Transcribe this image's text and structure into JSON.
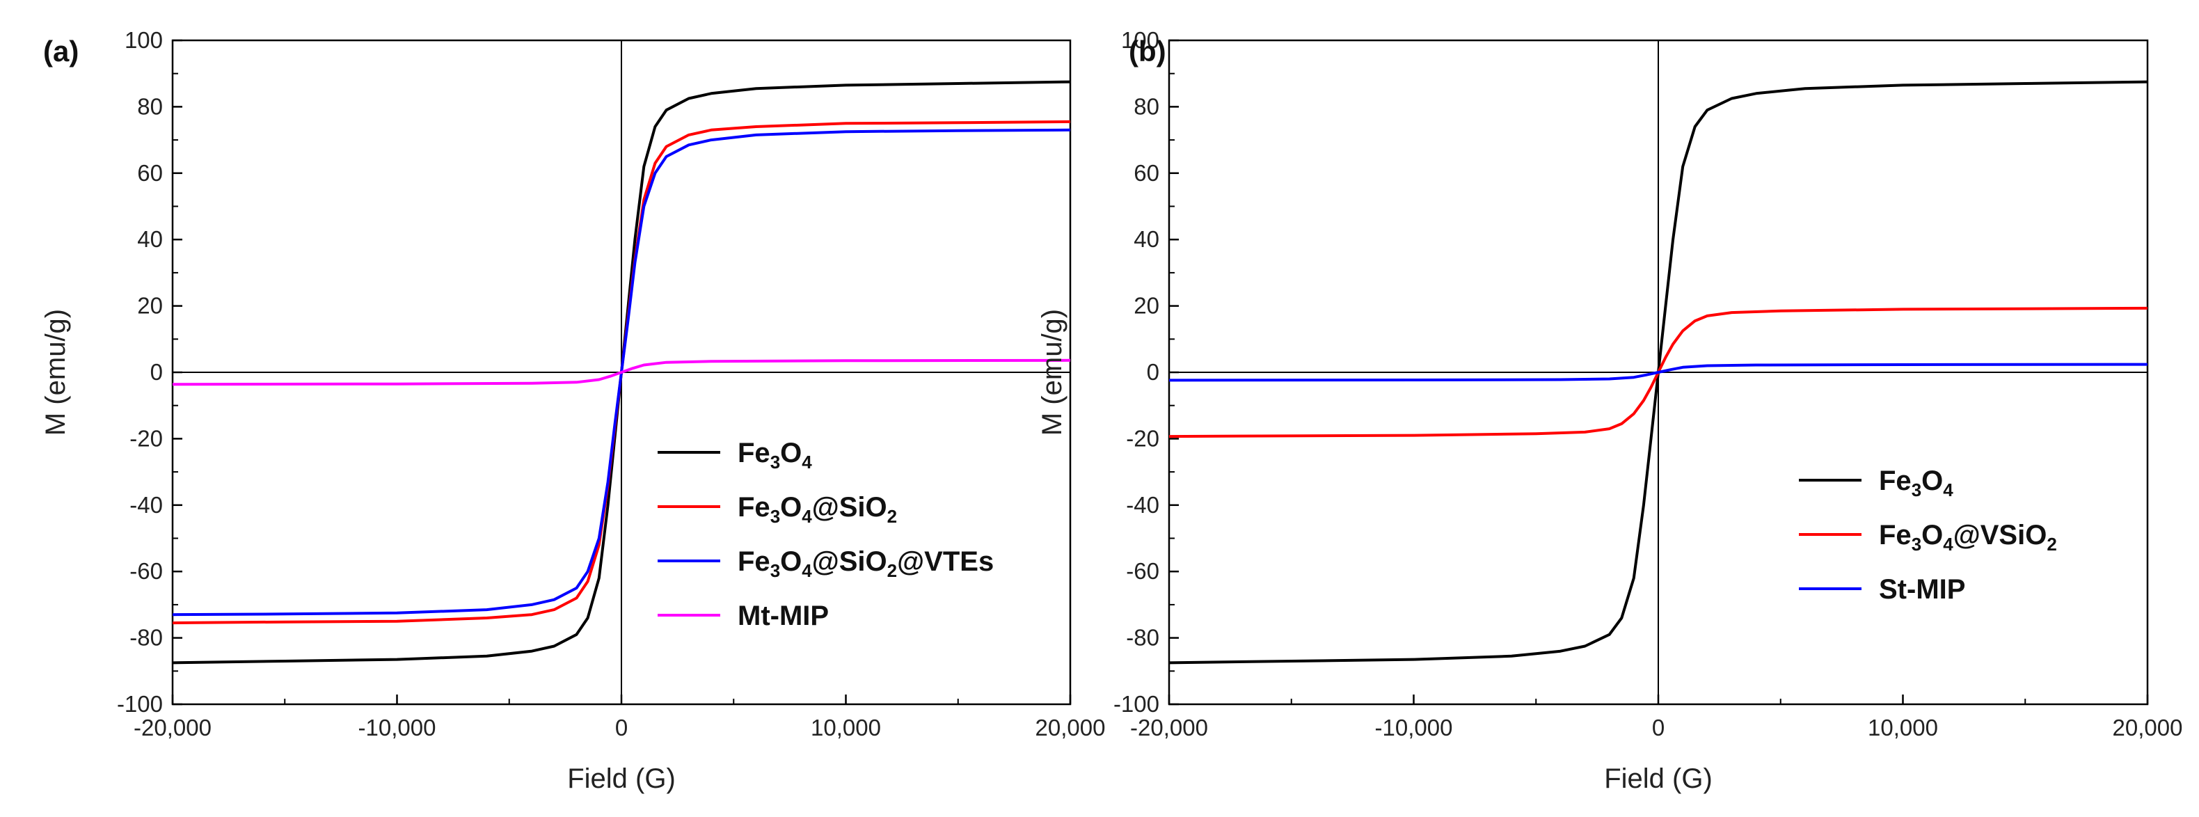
{
  "chart_data": [
    {
      "panel_label": "(a)",
      "type": "line",
      "xlabel": "Field (G)",
      "ylabel": "M (emu/g)",
      "xlim": [
        -20000,
        20000
      ],
      "ylim": [
        -100,
        100
      ],
      "x_ticks": [
        -20000,
        -10000,
        0,
        10000,
        20000
      ],
      "x_tick_labels": [
        "-20,000",
        "-10,000",
        "0",
        "10,000",
        "20,000"
      ],
      "y_ticks": [
        -100,
        -80,
        -60,
        -40,
        -20,
        0,
        20,
        40,
        60,
        80,
        100
      ],
      "y_tick_labels": [
        "-100",
        "-80",
        "-60",
        "-40",
        "-20",
        "0",
        "20",
        "40",
        "60",
        "80",
        "100"
      ],
      "legend_position": "lower-right",
      "series": [
        {
          "name": "Fe3O4",
          "label_parts": [
            "Fe",
            "3",
            "O",
            "4",
            ""
          ],
          "color": "#000000",
          "x": [
            -20000,
            -15000,
            -10000,
            -6000,
            -4000,
            -3000,
            -2000,
            -1500,
            -1000,
            -600,
            -300,
            0,
            300,
            600,
            1000,
            1500,
            2000,
            3000,
            4000,
            6000,
            10000,
            15000,
            20000
          ],
          "y": [
            -87.5,
            -87,
            -86.5,
            -85.5,
            -84,
            -82.5,
            -79,
            -74,
            -62,
            -40,
            -20,
            0,
            20,
            40,
            62,
            74,
            79,
            82.5,
            84,
            85.5,
            86.5,
            87,
            87.5
          ]
        },
        {
          "name": "Fe3O4@SiO2",
          "label_parts": [
            "Fe",
            "3",
            "O",
            "4",
            "@SiO",
            "2",
            ""
          ],
          "color": "#ff0000",
          "x": [
            -20000,
            -15000,
            -10000,
            -6000,
            -4000,
            -3000,
            -2000,
            -1500,
            -1000,
            -600,
            -300,
            0,
            300,
            600,
            1000,
            1500,
            2000,
            3000,
            4000,
            6000,
            10000,
            15000,
            20000
          ],
          "y": [
            -75.5,
            -75.2,
            -75,
            -74,
            -73,
            -71.5,
            -68,
            -63,
            -52,
            -34,
            -17,
            0,
            17,
            34,
            52,
            63,
            68,
            71.5,
            73,
            74,
            75,
            75.2,
            75.5
          ]
        },
        {
          "name": "Fe3O4@SiO2@VTEs",
          "label_parts": [
            "Fe",
            "3",
            "O",
            "4",
            "@SiO",
            "2",
            "@VTEs"
          ],
          "color": "#0000ff",
          "x": [
            -20000,
            -15000,
            -10000,
            -6000,
            -4000,
            -3000,
            -2000,
            -1500,
            -1000,
            -600,
            -300,
            0,
            300,
            600,
            1000,
            1500,
            2000,
            3000,
            4000,
            6000,
            10000,
            15000,
            20000
          ],
          "y": [
            -73,
            -72.8,
            -72.5,
            -71.5,
            -70,
            -68.5,
            -65,
            -60,
            -50,
            -33,
            -16,
            0,
            16,
            33,
            50,
            60,
            65,
            68.5,
            70,
            71.5,
            72.5,
            72.8,
            73
          ]
        },
        {
          "name": "Mt-MIP",
          "label_parts": [
            "Mt-MIP"
          ],
          "color": "#ff00ff",
          "x": [
            -20000,
            -10000,
            -4000,
            -2000,
            -1000,
            -500,
            0,
            500,
            1000,
            2000,
            4000,
            10000,
            20000
          ],
          "y": [
            -3.6,
            -3.5,
            -3.3,
            -3,
            -2.2,
            -1.2,
            0,
            1.2,
            2.2,
            3,
            3.3,
            3.5,
            3.6
          ]
        }
      ]
    },
    {
      "panel_label": "(b)",
      "type": "line",
      "xlabel": "Field (G)",
      "ylabel": "M (emu/g)",
      "xlim": [
        -20000,
        20000
      ],
      "ylim": [
        -100,
        100
      ],
      "x_ticks": [
        -20000,
        -10000,
        0,
        10000,
        20000
      ],
      "x_tick_labels": [
        "-20,000",
        "-10,000",
        "0",
        "10,000",
        "20,000"
      ],
      "y_ticks": [
        -100,
        -80,
        -60,
        -40,
        -20,
        0,
        20,
        40,
        60,
        80,
        100
      ],
      "y_tick_labels": [
        "-100",
        "-80",
        "-60",
        "-40",
        "-20",
        "0",
        "20",
        "40",
        "60",
        "80",
        "100"
      ],
      "legend_position": "lower-right",
      "series": [
        {
          "name": "Fe3O4",
          "label_parts": [
            "Fe",
            "3",
            "O",
            "4",
            ""
          ],
          "color": "#000000",
          "x": [
            -20000,
            -15000,
            -10000,
            -6000,
            -4000,
            -3000,
            -2000,
            -1500,
            -1000,
            -600,
            -300,
            0,
            300,
            600,
            1000,
            1500,
            2000,
            3000,
            4000,
            6000,
            10000,
            15000,
            20000
          ],
          "y": [
            -87.5,
            -87,
            -86.5,
            -85.5,
            -84,
            -82.5,
            -79,
            -74,
            -62,
            -40,
            -20,
            0,
            20,
            40,
            62,
            74,
            79,
            82.5,
            84,
            85.5,
            86.5,
            87,
            87.5
          ]
        },
        {
          "name": "Fe3O4@VSiO2",
          "label_parts": [
            "Fe",
            "3",
            "O",
            "4",
            "@VSiO",
            "2",
            ""
          ],
          "color": "#ff0000",
          "x": [
            -20000,
            -10000,
            -5000,
            -3000,
            -2000,
            -1500,
            -1000,
            -600,
            -300,
            0,
            300,
            600,
            1000,
            1500,
            2000,
            3000,
            5000,
            10000,
            20000
          ],
          "y": [
            -19.3,
            -19,
            -18.5,
            -18,
            -17,
            -15.5,
            -12.5,
            -8.5,
            -4.5,
            0,
            4.5,
            8.5,
            12.5,
            15.5,
            17,
            18,
            18.5,
            19,
            19.3
          ]
        },
        {
          "name": "St-MIP",
          "label_parts": [
            "St-MIP"
          ],
          "color": "#0000ff",
          "x": [
            -20000,
            -10000,
            -4000,
            -2000,
            -1000,
            -500,
            0,
            500,
            1000,
            2000,
            4000,
            10000,
            20000
          ],
          "y": [
            -2.4,
            -2.3,
            -2.2,
            -2,
            -1.5,
            -0.8,
            0,
            0.8,
            1.5,
            2,
            2.2,
            2.3,
            2.4
          ]
        }
      ]
    }
  ]
}
